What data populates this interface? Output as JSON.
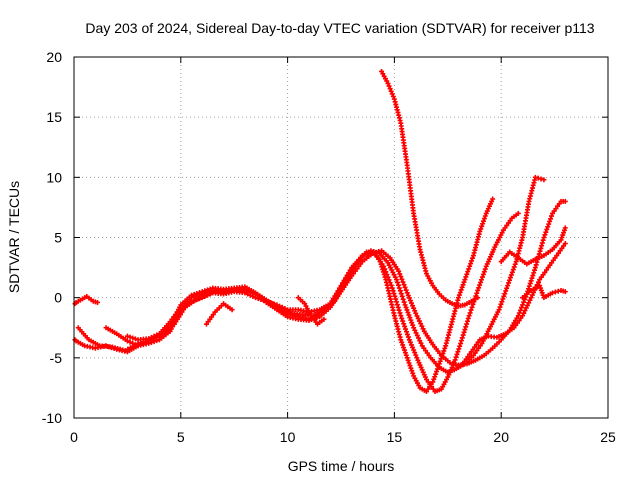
{
  "chart_data": {
    "type": "scatter",
    "title": "Day 203 of 2024, Sidereal Day-to-day VTEC variation (SDTVAR) for receiver p113",
    "xlabel": "GPS time / hours",
    "ylabel": "SDTVAR / TECUs",
    "xlim": [
      0,
      25
    ],
    "ylim": [
      -10,
      20
    ],
    "xticks": [
      0,
      5,
      10,
      15,
      20,
      25
    ],
    "yticks": [
      -10,
      -5,
      0,
      5,
      10,
      15,
      20
    ],
    "xtick_labels": [
      "0",
      "5",
      "10",
      "15",
      "20",
      "25"
    ],
    "ytick_labels": [
      "-10",
      "-5",
      "0",
      "5",
      "10",
      "15",
      "20"
    ],
    "grid": true,
    "marker": "+",
    "color": "#ff0000",
    "series": [
      {
        "points": [
          [
            0.0,
            -0.5
          ],
          [
            0.3,
            -0.2
          ],
          [
            0.6,
            0.1
          ],
          [
            0.9,
            -0.3
          ],
          [
            1.1,
            -0.4
          ]
        ]
      },
      {
        "points": [
          [
            0.0,
            -3.5
          ],
          [
            0.5,
            -4.0
          ],
          [
            1.0,
            -4.2
          ],
          [
            1.5,
            -4.0
          ],
          [
            2.0,
            -4.3
          ],
          [
            2.5,
            -4.5
          ],
          [
            3.0,
            -4.0
          ],
          [
            3.5,
            -3.8
          ],
          [
            4.0,
            -3.5
          ],
          [
            4.5,
            -2.8
          ],
          [
            5.0,
            -1.0
          ],
          [
            5.5,
            -0.3
          ],
          [
            6.0,
            0.0
          ],
          [
            6.5,
            0.4
          ],
          [
            7.0,
            0.3
          ],
          [
            7.5,
            0.5
          ],
          [
            8.0,
            0.4
          ],
          [
            8.5,
            0.0
          ],
          [
            9.0,
            -0.3
          ],
          [
            9.5,
            -0.6
          ],
          [
            10.0,
            -1.0
          ],
          [
            10.5,
            -1.0
          ],
          [
            11.0,
            -1.2
          ],
          [
            11.5,
            -1.0
          ],
          [
            12.0,
            -0.5
          ],
          [
            12.5,
            1.0
          ],
          [
            13.0,
            2.5
          ],
          [
            13.5,
            3.5
          ],
          [
            14.0,
            3.8
          ],
          [
            14.3,
            3.2
          ],
          [
            14.6,
            1.5
          ],
          [
            15.0,
            -1.5
          ],
          [
            15.3,
            -3.5
          ],
          [
            15.6,
            -5.0
          ],
          [
            15.9,
            -6.5
          ],
          [
            16.2,
            -7.5
          ],
          [
            16.5,
            -7.8
          ],
          [
            16.8,
            -7.0
          ],
          [
            17.1,
            -5.5
          ],
          [
            17.4,
            -4.0
          ],
          [
            17.7,
            -2.0
          ],
          [
            18.0,
            0.0
          ],
          [
            18.3,
            1.5
          ],
          [
            18.7,
            3.5
          ],
          [
            19.0,
            5.5
          ],
          [
            19.3,
            7.0
          ],
          [
            19.6,
            8.2
          ]
        ]
      },
      {
        "points": [
          [
            0.2,
            -2.5
          ],
          [
            0.7,
            -3.5
          ],
          [
            1.2,
            -4.0
          ],
          [
            1.8,
            -4.1
          ],
          [
            2.4,
            -4.4
          ],
          [
            3.0,
            -3.8
          ],
          [
            3.6,
            -3.5
          ],
          [
            4.2,
            -3.0
          ],
          [
            4.7,
            -2.2
          ],
          [
            5.2,
            -0.8
          ],
          [
            5.7,
            -0.2
          ],
          [
            6.2,
            0.2
          ],
          [
            6.7,
            0.6
          ],
          [
            7.2,
            0.5
          ],
          [
            7.7,
            0.7
          ],
          [
            8.2,
            0.6
          ],
          [
            8.7,
            0.1
          ],
          [
            9.2,
            -0.4
          ],
          [
            9.7,
            -0.9
          ],
          [
            10.2,
            -1.3
          ],
          [
            10.7,
            -1.4
          ],
          [
            11.2,
            -1.5
          ],
          [
            11.7,
            -1.0
          ],
          [
            12.2,
            -0.3
          ],
          [
            12.7,
            1.3
          ],
          [
            13.2,
            2.8
          ],
          [
            13.7,
            3.8
          ],
          [
            14.1,
            3.6
          ],
          [
            14.5,
            2.6
          ],
          [
            14.9,
            0.8
          ],
          [
            15.3,
            -1.5
          ],
          [
            15.7,
            -3.5
          ],
          [
            16.1,
            -5.2
          ],
          [
            16.5,
            -6.8
          ],
          [
            16.9,
            -7.8
          ],
          [
            17.2,
            -7.6
          ],
          [
            17.5,
            -6.6
          ],
          [
            17.8,
            -5.4
          ],
          [
            18.1,
            -3.8
          ],
          [
            18.5,
            -1.5
          ],
          [
            18.9,
            0.6
          ],
          [
            19.3,
            2.6
          ],
          [
            19.7,
            4.2
          ],
          [
            20.1,
            5.6
          ],
          [
            20.5,
            6.6
          ],
          [
            20.8,
            7.0
          ]
        ]
      },
      {
        "points": [
          [
            1.5,
            -2.5
          ],
          [
            2.0,
            -3.0
          ],
          [
            2.5,
            -3.6
          ],
          [
            3.0,
            -4.0
          ],
          [
            3.5,
            -3.6
          ],
          [
            4.0,
            -3.2
          ],
          [
            4.5,
            -2.4
          ],
          [
            5.0,
            -0.6
          ],
          [
            5.5,
            0.2
          ],
          [
            6.0,
            0.5
          ],
          [
            6.5,
            0.8
          ],
          [
            7.0,
            0.7
          ],
          [
            7.5,
            0.8
          ],
          [
            8.0,
            0.9
          ],
          [
            8.5,
            0.4
          ],
          [
            9.0,
            -0.2
          ],
          [
            9.5,
            -0.8
          ],
          [
            10.0,
            -1.4
          ],
          [
            10.5,
            -1.6
          ],
          [
            11.0,
            -1.8
          ],
          [
            11.5,
            -1.4
          ],
          [
            12.0,
            -0.6
          ],
          [
            12.5,
            0.9
          ],
          [
            13.0,
            2.3
          ],
          [
            13.5,
            3.5
          ],
          [
            13.9,
            3.9
          ],
          [
            14.3,
            3.7
          ],
          [
            14.7,
            2.9
          ],
          [
            15.1,
            1.5
          ],
          [
            15.5,
            -0.6
          ],
          [
            15.9,
            -2.5
          ],
          [
            16.3,
            -4.0
          ],
          [
            16.7,
            -5.0
          ],
          [
            17.1,
            -5.8
          ],
          [
            17.5,
            -6.2
          ],
          [
            17.9,
            -5.9
          ],
          [
            18.3,
            -5.5
          ],
          [
            18.7,
            -4.8
          ],
          [
            19.1,
            -3.8
          ],
          [
            19.5,
            -2.4
          ],
          [
            19.9,
            -1.0
          ],
          [
            20.3,
            1.0
          ],
          [
            20.7,
            3.0
          ],
          [
            21.0,
            5.0
          ],
          [
            21.3,
            8.0
          ],
          [
            21.6,
            10.0
          ],
          [
            22.0,
            9.8
          ]
        ]
      },
      {
        "points": [
          [
            2.5,
            -3.2
          ],
          [
            3.0,
            -3.5
          ],
          [
            3.5,
            -3.4
          ],
          [
            4.0,
            -3.0
          ],
          [
            4.5,
            -2.0
          ],
          [
            5.0,
            -0.8
          ],
          [
            5.5,
            0.0
          ],
          [
            6.0,
            0.3
          ],
          [
            6.5,
            0.6
          ],
          [
            7.0,
            0.5
          ],
          [
            7.5,
            0.6
          ],
          [
            8.0,
            0.7
          ],
          [
            8.5,
            0.3
          ],
          [
            9.0,
            -0.4
          ],
          [
            9.5,
            -1.0
          ],
          [
            10.0,
            -1.6
          ],
          [
            10.5,
            -1.8
          ],
          [
            11.0,
            -1.9
          ],
          [
            11.5,
            -1.6
          ],
          [
            12.0,
            -0.8
          ],
          [
            12.5,
            0.5
          ],
          [
            13.0,
            1.8
          ],
          [
            13.5,
            3.0
          ],
          [
            14.0,
            3.7
          ],
          [
            14.4,
            3.9
          ],
          [
            14.8,
            3.3
          ],
          [
            15.2,
            2.2
          ],
          [
            15.6,
            0.4
          ],
          [
            16.0,
            -1.3
          ],
          [
            16.4,
            -2.8
          ],
          [
            16.8,
            -3.9
          ],
          [
            17.2,
            -4.8
          ],
          [
            17.6,
            -5.4
          ],
          [
            18.0,
            -5.6
          ],
          [
            18.4,
            -5.5
          ],
          [
            18.8,
            -5.2
          ],
          [
            19.2,
            -4.8
          ],
          [
            19.6,
            -4.2
          ],
          [
            20.0,
            -3.5
          ],
          [
            20.4,
            -2.7
          ],
          [
            20.8,
            -1.5
          ],
          [
            21.2,
            0.3
          ],
          [
            21.6,
            2.5
          ],
          [
            22.0,
            5.0
          ],
          [
            22.4,
            7.0
          ],
          [
            22.8,
            8.0
          ],
          [
            23.0,
            8.0
          ]
        ]
      },
      {
        "points": [
          [
            14.4,
            18.8
          ],
          [
            14.7,
            17.8
          ],
          [
            15.0,
            16.5
          ],
          [
            15.3,
            14.5
          ],
          [
            15.6,
            11.0
          ],
          [
            15.9,
            7.0
          ],
          [
            16.2,
            4.0
          ],
          [
            16.5,
            2.0
          ],
          [
            16.8,
            1.0
          ],
          [
            17.1,
            0.3
          ],
          [
            17.4,
            -0.2
          ],
          [
            17.7,
            -0.5
          ],
          [
            18.0,
            -0.7
          ],
          [
            18.3,
            -0.6
          ],
          [
            18.6,
            -0.3
          ],
          [
            18.9,
            0.0
          ]
        ]
      },
      {
        "points": [
          [
            17.8,
            -6.0
          ],
          [
            18.2,
            -5.5
          ],
          [
            18.6,
            -4.5
          ],
          [
            19.0,
            -3.5
          ],
          [
            19.4,
            -3.2
          ],
          [
            19.8,
            -3.3
          ],
          [
            20.2,
            -3.0
          ],
          [
            20.6,
            -2.5
          ],
          [
            21.0,
            -1.5
          ],
          [
            21.4,
            0.0
          ],
          [
            21.8,
            1.5
          ],
          [
            22.2,
            2.5
          ],
          [
            22.6,
            3.5
          ],
          [
            23.0,
            4.5
          ]
        ]
      },
      {
        "points": [
          [
            20.0,
            3.0
          ],
          [
            20.4,
            3.8
          ],
          [
            20.8,
            3.3
          ],
          [
            21.2,
            2.8
          ],
          [
            21.6,
            3.2
          ],
          [
            22.0,
            3.5
          ],
          [
            22.4,
            4.0
          ],
          [
            22.8,
            4.8
          ],
          [
            23.0,
            5.8
          ]
        ]
      },
      {
        "points": [
          [
            21.0,
            0.0
          ],
          [
            21.4,
            0.6
          ],
          [
            21.8,
            1.0
          ],
          [
            22.0,
            0.0
          ],
          [
            22.4,
            0.4
          ],
          [
            22.8,
            0.6
          ],
          [
            23.0,
            0.5
          ]
        ]
      },
      {
        "points": [
          [
            10.5,
            0.0
          ],
          [
            10.8,
            -0.5
          ],
          [
            11.1,
            -1.5
          ],
          [
            11.4,
            -2.2
          ],
          [
            11.7,
            -1.8
          ]
        ]
      },
      {
        "points": [
          [
            6.2,
            -2.2
          ],
          [
            6.6,
            -1.2
          ],
          [
            7.0,
            -0.5
          ],
          [
            7.4,
            -1.0
          ]
        ]
      }
    ]
  }
}
